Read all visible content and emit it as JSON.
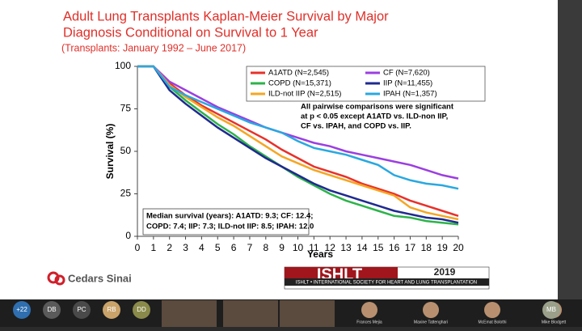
{
  "chart_data": {
    "type": "line",
    "title_lines": [
      "Adult Lung Transplants Kaplan-Meier Survival by Major",
      "Diagnosis Conditional on Survival to 1 Year"
    ],
    "subtitle": "(Transplants: January 1992 – June 2017)",
    "y_label": "Survival (%)",
    "x_label": "Years",
    "x": [
      0,
      1,
      2,
      3,
      4,
      5,
      6,
      7,
      8,
      9,
      10,
      11,
      12,
      13,
      14,
      15,
      16,
      17,
      18,
      19,
      20
    ],
    "xlim": [
      0,
      20
    ],
    "xticks": [
      0,
      1,
      2,
      3,
      4,
      5,
      6,
      7,
      8,
      9,
      10,
      11,
      12,
      13,
      14,
      15,
      16,
      17,
      18,
      19,
      20
    ],
    "ylim": [
      0,
      100
    ],
    "yticks": [
      0,
      25,
      50,
      75,
      100
    ],
    "grid": false,
    "series": [
      {
        "name": "A1ATD (N=2,545)",
        "color": "#e8312a",
        "values": [
          100,
          100,
          90,
          83,
          77,
          72,
          67,
          62,
          57,
          51,
          46,
          41,
          38,
          35,
          31,
          28,
          25,
          21,
          18,
          15,
          12
        ]
      },
      {
        "name": "CF (N=7,620)",
        "color": "#9b3fe0",
        "values": [
          100,
          100,
          91,
          86,
          81,
          76,
          72,
          68,
          64,
          61,
          58,
          55,
          53,
          50,
          48,
          46,
          44,
          42,
          39,
          36,
          34
        ]
      },
      {
        "name": "COPD (N=15,371)",
        "color": "#2db34a",
        "values": [
          100,
          100,
          88,
          80,
          73,
          66,
          60,
          53,
          47,
          41,
          35,
          30,
          25,
          21,
          18,
          15,
          12,
          11,
          9,
          8,
          7
        ]
      },
      {
        "name": "IIP (N=11,455)",
        "color": "#1f2a8f",
        "values": [
          100,
          100,
          86,
          78,
          71,
          64,
          58,
          52,
          46,
          41,
          36,
          31,
          27,
          24,
          21,
          18,
          15,
          13,
          11,
          10,
          8
        ]
      },
      {
        "name": "ILD-not IIP (N=2,515)",
        "color": "#f5a623",
        "values": [
          100,
          100,
          89,
          82,
          76,
          70,
          65,
          59,
          53,
          47,
          43,
          39,
          36,
          33,
          30,
          27,
          24,
          17,
          14,
          12,
          10
        ]
      },
      {
        "name": "IPAH (N=1,357)",
        "color": "#29a8e0",
        "values": [
          100,
          100,
          88,
          83,
          79,
          75,
          71,
          67,
          64,
          61,
          56,
          52,
          50,
          48,
          45,
          42,
          36,
          33,
          31,
          30,
          28
        ]
      }
    ],
    "annotation_lines": [
      "All pairwise comparisons were significant",
      "at p < 0.05 except A1ATD vs. ILD-non IIP,",
      "CF vs. IPAH, and COPD vs. IIP."
    ],
    "median_lines": [
      "Median survival (years): A1ATD: 9.3; CF: 12.4;",
      "COPD: 7.4; IIP: 7.3; ILD-not IIP: 8.5; IPAH: 12.0"
    ]
  },
  "slide": {
    "logo": "Cedars Sinai",
    "ishlt": {
      "name": "ISHLT",
      "year": "2019",
      "tagline": "ISHLT • INTERNATIONAL SOCIETY FOR HEART AND LUNG TRANSPLANTATION"
    }
  },
  "meeting": {
    "avatars": [
      "+22",
      "DB",
      "PC",
      "RB",
      "DD"
    ],
    "tiles": [
      "Frances Mejia",
      "Maxine Tattenghari",
      "McEmat Bolothi",
      "Mike Blodgett"
    ],
    "last_avatar": "MB"
  }
}
